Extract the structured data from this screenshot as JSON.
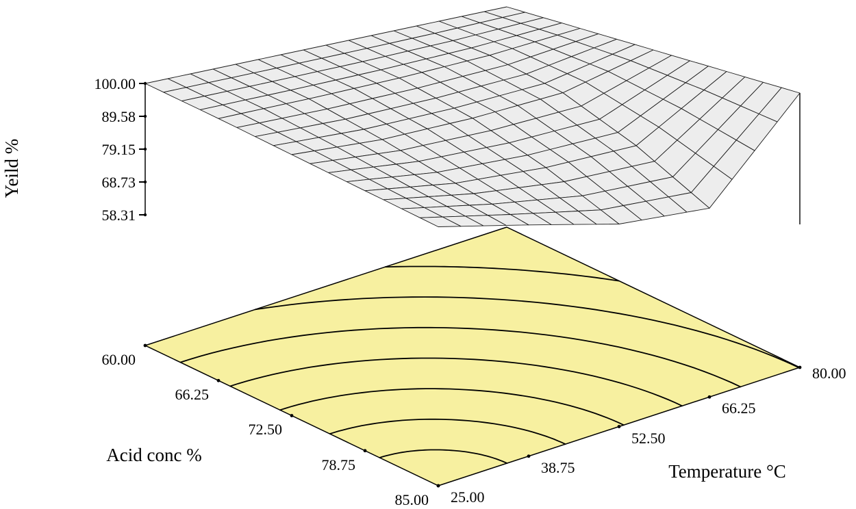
{
  "figure": {
    "background": "#ffffff"
  },
  "chart_data": {
    "type": "surface3d",
    "title": "",
    "z_axis": {
      "label": "Yeild %",
      "min": 58.31,
      "max": 100.0,
      "ticks": [
        "100.00",
        "89.58",
        "79.15",
        "68.73",
        "58.31"
      ]
    },
    "x_axis": {
      "label": "Acid conc %",
      "min": 60.0,
      "max": 85.0,
      "ticks": [
        "60.00",
        "66.25",
        "72.50",
        "78.75",
        "85.00"
      ]
    },
    "y_axis": {
      "label": "Temperature °C",
      "min": 25.0,
      "max": 80.0,
      "ticks": [
        "25.00",
        "38.75",
        "52.50",
        "66.25",
        "80.00"
      ]
    },
    "surface": {
      "acid_values": [
        60,
        66.25,
        72.5,
        78.75,
        85
      ],
      "temp_values": [
        25,
        38.75,
        52.5,
        66.25,
        80
      ],
      "z_grid": [
        [
          100,
          100,
          100,
          100,
          100
        ],
        [
          100,
          98.5,
          97.5,
          97.5,
          99.5
        ],
        [
          99.5,
          94,
          91.5,
          91,
          99
        ],
        [
          99,
          88,
          81,
          77,
          98.5
        ],
        [
          98.5,
          83,
          67,
          58.31,
          98
        ]
      ],
      "mesh_divisions": 16,
      "mesh_fill": "#ededed",
      "mesh_stroke": "#1a1a1a"
    },
    "floor": {
      "fill": "#f7f0a0",
      "stroke": "#000000",
      "contour_color": "#000000",
      "contour_count": 7,
      "contour_levels_normalized": [
        0.2,
        0.37,
        0.54,
        0.71,
        0.88,
        1.05,
        1.22
      ]
    }
  }
}
